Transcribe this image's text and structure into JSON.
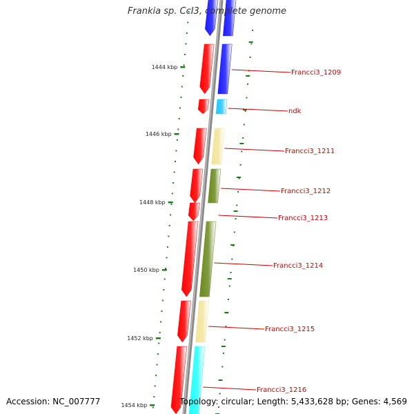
{
  "title": "Frankia sp. CcI3, complete genome",
  "accession": "Accession: NC_007777",
  "summary": "Topology: circular; Length: 5,433,628 bp; Genes: 4,569",
  "colors": {
    "backbone": "#8a8a8a",
    "tick": "#1e7a1e",
    "label": "#cc0000",
    "gene_red": "#ff0000",
    "gene_blue": "#1a1aff",
    "gene_cyan": "#22c6ff",
    "gene_pale": "#f2e49a",
    "gene_olive": "#6b8a1e",
    "gene_aqua": "#22ffff"
  },
  "kbp_labels": [
    "1444 kbp",
    "1446 kbp",
    "1448 kbp",
    "1450 kbp",
    "1452 kbp",
    "1454 kbp"
  ],
  "genes": [
    {
      "label": "",
      "outer_color": "gene_blue",
      "inner_color": "gene_blue"
    },
    {
      "label": "Francci3_1209",
      "outer_color": "gene_blue",
      "inner_color": "gene_red"
    },
    {
      "label": "ndk",
      "outer_color": "gene_cyan",
      "inner_color": "gene_red"
    },
    {
      "label": "Francci3_1211",
      "outer_color": "gene_pale",
      "inner_color": "gene_red"
    },
    {
      "label": "Francci3_1212",
      "outer_color": "gene_olive",
      "inner_color": "gene_red"
    },
    {
      "label": "Francci3_1213",
      "outer_color": "",
      "inner_color": "gene_red"
    },
    {
      "label": "Francci3_1214",
      "outer_color": "gene_olive",
      "inner_color": "gene_red"
    },
    {
      "label": "Francci3_1215",
      "outer_color": "gene_pale",
      "inner_color": "gene_red"
    },
    {
      "label": "Francci3_1216",
      "outer_color": "gene_aqua",
      "inner_color": "gene_red"
    }
  ]
}
